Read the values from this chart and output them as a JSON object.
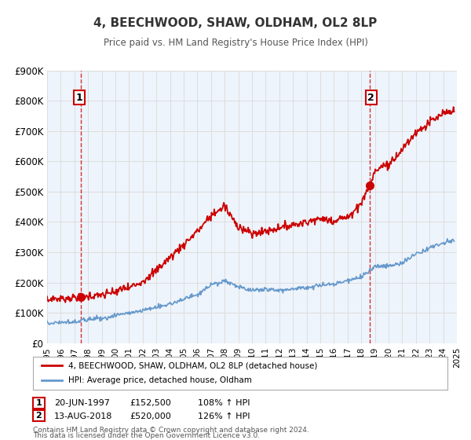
{
  "title": "4, BEECHWOOD, SHAW, OLDHAM, OL2 8LP",
  "subtitle": "Price paid vs. HM Land Registry's House Price Index (HPI)",
  "xlim": [
    1995,
    2025
  ],
  "ylim": [
    0,
    900000
  ],
  "yticks": [
    0,
    100000,
    200000,
    300000,
    400000,
    500000,
    600000,
    700000,
    800000,
    900000
  ],
  "ytick_labels": [
    "£0",
    "£100K",
    "£200K",
    "£300K",
    "£400K",
    "£500K",
    "£600K",
    "£700K",
    "£800K",
    "£900K"
  ],
  "xticks": [
    1995,
    1996,
    1997,
    1998,
    1999,
    2000,
    2001,
    2002,
    2003,
    2004,
    2005,
    2006,
    2007,
    2008,
    2009,
    2010,
    2011,
    2012,
    2013,
    2014,
    2015,
    2016,
    2017,
    2018,
    2019,
    2020,
    2021,
    2022,
    2023,
    2024,
    2025
  ],
  "sale1_date": 1997.47,
  "sale1_price": 152500,
  "sale2_date": 2018.62,
  "sale2_price": 520000,
  "legend_label_red": "4, BEECHWOOD, SHAW, OLDHAM, OL2 8LP (detached house)",
  "legend_label_blue": "HPI: Average price, detached house, Oldham",
  "annotation1_label": "1",
  "annotation1_date": "20-JUN-1997",
  "annotation1_price": "£152,500",
  "annotation1_hpi": "108% ↑ HPI",
  "annotation2_label": "2",
  "annotation2_date": "13-AUG-2018",
  "annotation2_price": "£520,000",
  "annotation2_hpi": "126% ↑ HPI",
  "footer1": "Contains HM Land Registry data © Crown copyright and database right 2024.",
  "footer2": "This data is licensed under the Open Government Licence v3.0.",
  "color_red": "#cc0000",
  "color_blue": "#6699cc",
  "color_grid": "#dddddd",
  "color_bg_plot": "#eef4fb",
  "color_marker_red": "#cc0000"
}
